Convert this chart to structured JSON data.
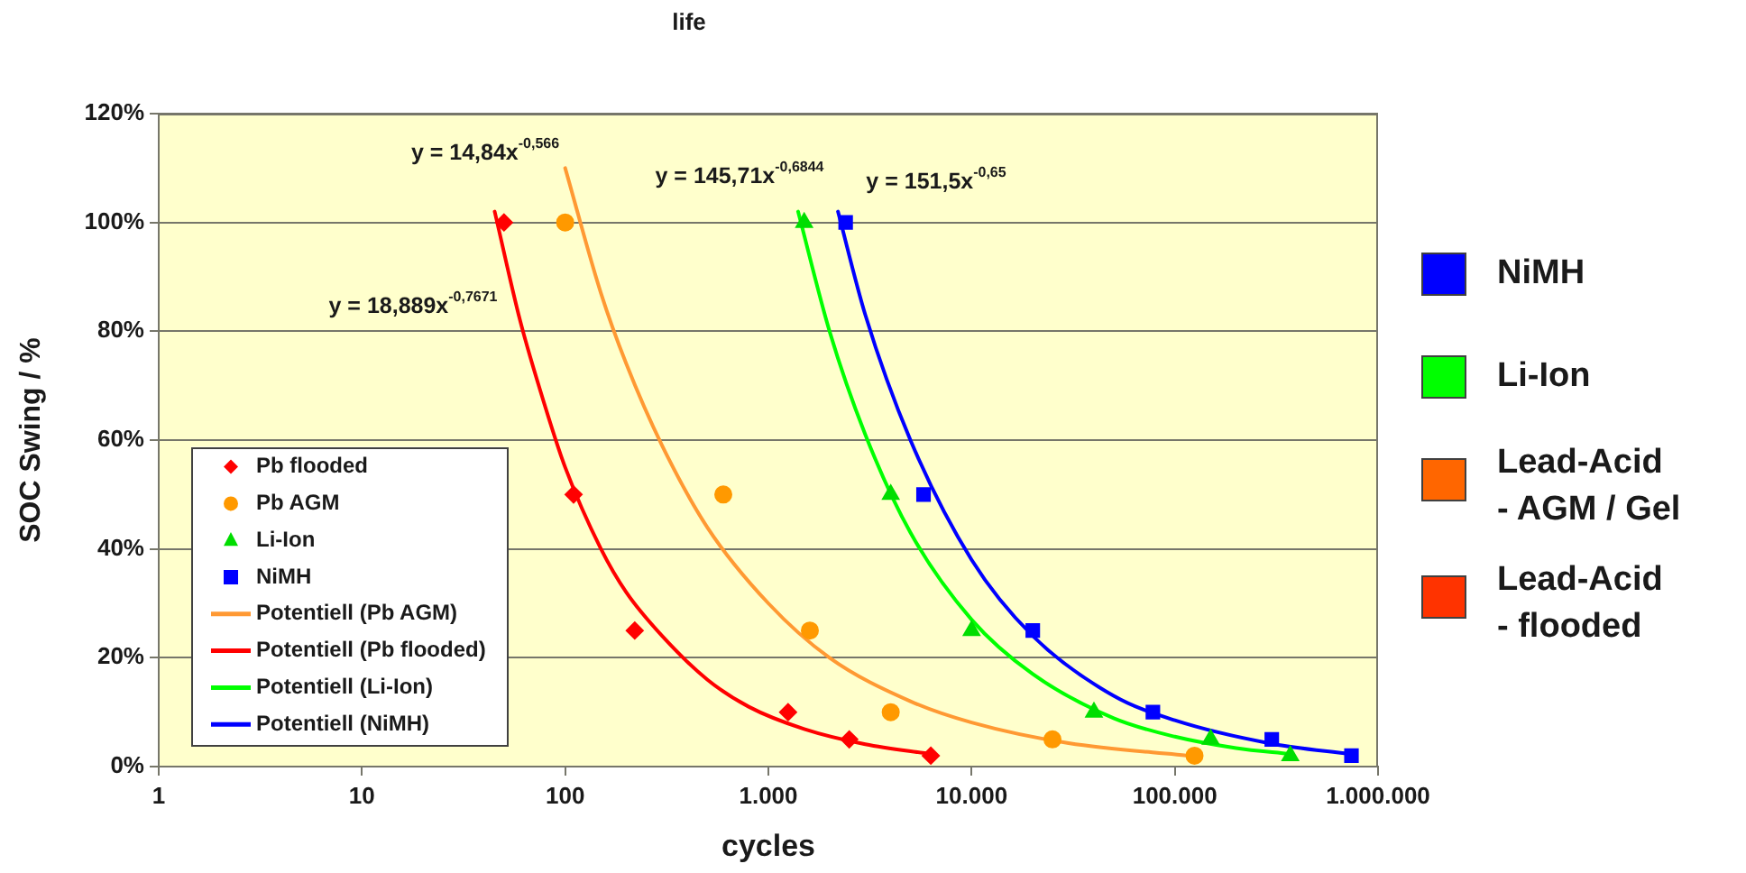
{
  "chart_data": [
    {
      "type": "scatter",
      "title": "life",
      "xlabel": "cycles",
      "ylabel": "SOC Swing / %",
      "log": "x",
      "xlim": [
        1,
        1000000
      ],
      "xticks": [
        1,
        10,
        100,
        {
          "value": 1000,
          "label": "1.000"
        },
        {
          "value": 10000,
          "label": "10.000"
        },
        {
          "value": 100000,
          "label": "100.000"
        },
        {
          "value": 1000000,
          "label": "1.000.000"
        }
      ],
      "ylim": [
        0,
        120
      ],
      "yticks": [
        {
          "value": 0,
          "label": "0%"
        },
        {
          "value": 20,
          "label": "20%"
        },
        {
          "value": 40,
          "label": "40%"
        },
        {
          "value": 60,
          "label": "60%"
        },
        {
          "value": 80,
          "label": "80%"
        },
        {
          "value": 100,
          "label": "100%"
        },
        {
          "value": 120,
          "label": "120%"
        }
      ],
      "grid": "y",
      "legend": "bottom left",
      "annotations": [
        "y = 14,84x$^{-0,566}$",
        "y = 145,71x$^{-0,6844}$",
        "y = 151,5x$^{-0,65}$",
        "y = 18,889x$^{-0,7671}$"
      ],
      "series": [
        {
          "name": "Pb flooded",
          "color": "#ff0000",
          "marker": "diamond",
          "x": [
            50,
            110,
            220,
            1250,
            2500,
            6300
          ],
          "values": [
            100,
            50,
            25,
            10,
            5,
            2
          ]
        },
        {
          "name": "Pb AGM",
          "color": "#ff9900",
          "marker": "circle",
          "x": [
            100,
            600,
            1600,
            4000,
            25000,
            125000
          ],
          "values": [
            100,
            50,
            25,
            10,
            5,
            2
          ]
        },
        {
          "name": "Li-Ion",
          "color": "#00dd00",
          "marker": "triangle",
          "x": [
            1500,
            4000,
            10000,
            40000,
            150000,
            370000
          ],
          "values": [
            100,
            50,
            25,
            10,
            5,
            2
          ]
        },
        {
          "name": "NiMH",
          "color": "#0000ff",
          "marker": "square",
          "x": [
            2400,
            5800,
            20000,
            78000,
            300000,
            740000
          ],
          "values": [
            100,
            50,
            25,
            10,
            5,
            2
          ]
        },
        {
          "name": "Potentiell (Pb AGM)",
          "type": "line",
          "color": "#ff9933",
          "marker": "none",
          "x": [
            100,
            150,
            200,
            300,
            500,
            1000,
            2000,
            5000,
            10000,
            30000,
            125000
          ],
          "values": [
            110,
            87,
            74,
            59,
            44,
            30,
            20,
            12,
            8.1,
            4.3,
            1.9
          ]
        },
        {
          "name": "Potentiell (Pb flooded)",
          "type": "line",
          "color": "#ff0000",
          "marker": "none",
          "x": [
            45,
            60,
            80,
            100,
            150,
            200,
            300,
            500,
            800,
            1500,
            3000,
            6300
          ],
          "values": [
            102,
            82,
            66,
            55,
            40,
            32,
            24,
            16,
            11,
            6.9,
            4.1,
            2.3
          ]
        },
        {
          "name": "Potentiell (Li-Ion)",
          "type": "line",
          "color": "#00ff00",
          "marker": "none",
          "x": [
            1400,
            2000,
            3000,
            5000,
            10000,
            20000,
            50000,
            100000,
            200000,
            370000
          ],
          "values": [
            102,
            80,
            61,
            43,
            27,
            17,
            8.9,
            5.5,
            3.4,
            2.3
          ]
        },
        {
          "name": "Potentiell (NiMH)",
          "type": "line",
          "color": "#0000ff",
          "marker": "none",
          "x": [
            2200,
            3000,
            5000,
            10000,
            20000,
            50000,
            100000,
            300000,
            740000
          ],
          "values": [
            102,
            83,
            60,
            38,
            24,
            13,
            8.5,
            4.2,
            2.3
          ]
        }
      ]
    },
    {
      "type": "other",
      "categories": [
        "NiMH",
        "Li-Ion",
        "Lead-Acid\n- AGM / Gel",
        "Lead-Acid\n- flooded"
      ],
      "colors": [
        "#0000ff",
        "#00ff00",
        "#ff6600",
        "#ff3300"
      ]
    }
  ]
}
